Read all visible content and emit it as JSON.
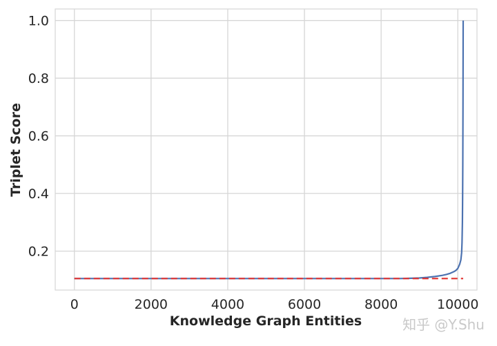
{
  "chart_data": {
    "type": "line",
    "xlabel": "Knowledge Graph Entities",
    "ylabel": "Triplet Score",
    "xlim": [
      -500,
      10500
    ],
    "ylim": [
      0.065,
      1.04
    ],
    "xticks": [
      0,
      2000,
      4000,
      6000,
      8000,
      10000
    ],
    "xtick_labels": [
      "0",
      "2000",
      "4000",
      "6000",
      "8000",
      "10000"
    ],
    "yticks": [
      0.2,
      0.4,
      0.6,
      0.8,
      1.0
    ],
    "ytick_labels": [
      "0.2",
      "0.4",
      "0.6",
      "0.8",
      "1.0"
    ],
    "grid": true,
    "series": [
      {
        "style": "solid",
        "color": "#4c72b0",
        "x": [
          0,
          1000,
          2000,
          3000,
          4000,
          5000,
          6000,
          7000,
          8000,
          8500,
          8800,
          9000,
          9200,
          9400,
          9600,
          9700,
          9800,
          9900,
          9950,
          10000,
          10050,
          10080,
          10100,
          10110,
          10120,
          10125,
          10130,
          10135,
          10140
        ],
        "y": [
          0.105,
          0.105,
          0.105,
          0.105,
          0.105,
          0.105,
          0.105,
          0.105,
          0.105,
          0.105,
          0.106,
          0.107,
          0.109,
          0.112,
          0.116,
          0.119,
          0.123,
          0.129,
          0.133,
          0.14,
          0.155,
          0.17,
          0.195,
          0.23,
          0.3,
          0.38,
          0.5,
          0.7,
          1.0
        ]
      },
      {
        "style": "dashed",
        "color": "#e0302f",
        "x": [
          0,
          10140
        ],
        "y": [
          0.105,
          0.105
        ]
      }
    ]
  },
  "watermark": "知乎 @Y.Shu"
}
